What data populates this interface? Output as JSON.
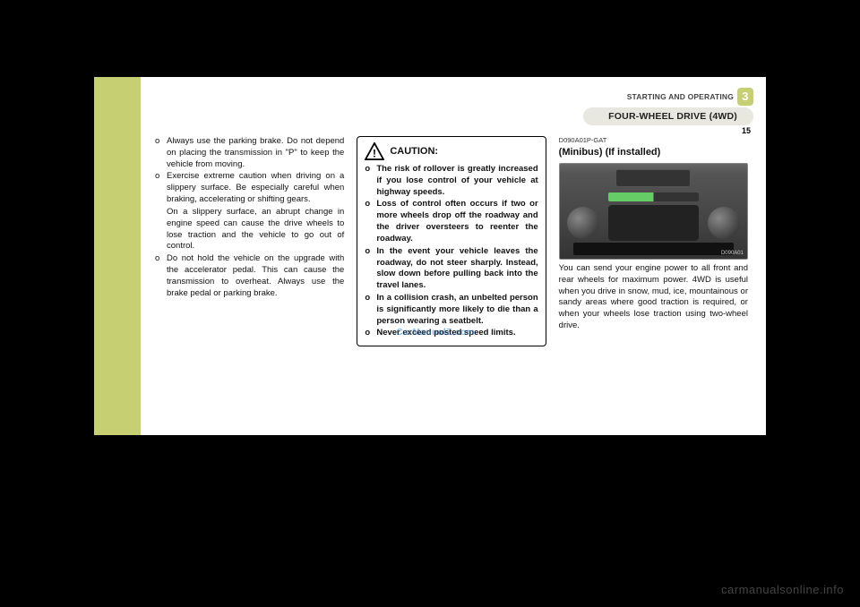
{
  "colors": {
    "green": "#c6cf72",
    "header_text": "#444",
    "chapter_bg": "#c6cf72",
    "tab_bg": "#e8e8e0",
    "tab_text": "#222",
    "watermark": "#2b7dd6"
  },
  "header": {
    "breadcrumb": "STARTING AND OPERATING",
    "chapter": "3",
    "section_tab": "FOUR-WHEEL DRIVE (4WD)",
    "page_num": "15"
  },
  "col1": {
    "items": [
      {
        "marker": "o",
        "text": "Always use the parking brake. Do not depend on placing the transmission in \"P\" to keep the vehicle from moving."
      },
      {
        "marker": "o",
        "text": "Exercise extreme caution when driving on a slippery surface. Be especially careful when braking, accelerating or shifting gears."
      },
      {
        "sub": true,
        "text": "On a slippery surface, an abrupt change in engine speed can cause the drive wheels to lose traction and the vehicle to go out of control."
      },
      {
        "marker": "o",
        "text": "Do not hold the vehicle on the upgrade with the accelerator pedal. This can cause the transmission to overheat. Always use the brake pedal or parking brake."
      }
    ]
  },
  "caution": {
    "title": "CAUTION:",
    "items": [
      {
        "marker": "o",
        "text": "The risk of rollover is greatly increased if you lose control of your vehicle at highway speeds."
      },
      {
        "marker": "o",
        "text": "Loss of control often occurs if two or more wheels drop off the roadway and the driver oversteers to reenter the roadway."
      },
      {
        "marker": "o",
        "text": "In the event your vehicle leaves the roadway, do not steer sharply. Instead, slow down before pulling back into the travel lanes."
      },
      {
        "marker": "o",
        "text": "In a collision crash, an unbelted person is significantly more likely to die than a person wearing a seatbelt."
      },
      {
        "marker": "o",
        "text": "Never exceed posted speed limits."
      }
    ]
  },
  "col3": {
    "code": "D090A01P-GAT",
    "title": "(Minibus) (If installed)",
    "image_label": "D090A01",
    "body": "You can send your engine power to all front and rear wheels for maximum power. 4WD is useful when you drive in snow, mud, ice, mountainous or sandy areas where good traction is required, or when your wheels lose traction using two-wheel drive."
  },
  "watermark_center": "CarManualZ.com",
  "watermark_footer": "carmanualsonline.info"
}
